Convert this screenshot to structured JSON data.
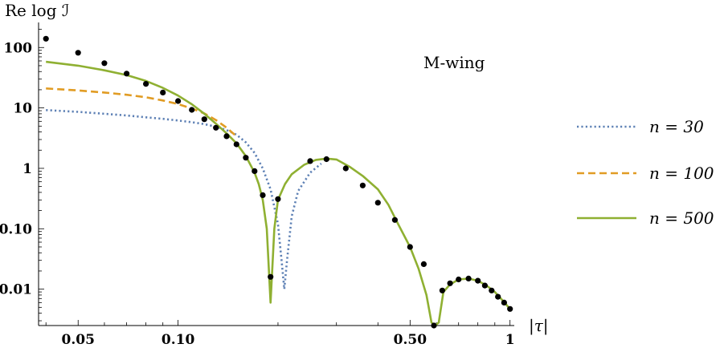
{
  "chart_data": {
    "type": "line",
    "title": "",
    "ylabel": "Re log ℐ",
    "xlabel": "|τ|",
    "x_scale": "log",
    "y_scale": "log",
    "xlim": [
      0.038,
      1.03
    ],
    "ylim": [
      0.0025,
      260
    ],
    "x_ticks": [
      {
        "value": 0.05,
        "label": "0.05"
      },
      {
        "value": 0.1,
        "label": "0.10"
      },
      {
        "value": 0.5,
        "label": "0.50"
      },
      {
        "value": 1,
        "label": "1"
      }
    ],
    "y_ticks": [
      {
        "value": 100,
        "label": "100"
      },
      {
        "value": 10,
        "label": "10"
      },
      {
        "value": 1,
        "label": "1"
      },
      {
        "value": 0.1,
        "label": "0.10"
      },
      {
        "value": 0.01,
        "label": "0.01"
      }
    ],
    "annotation": "M-wing",
    "legend_position": "right",
    "series": [
      {
        "name": "n = 30",
        "style": "dotted",
        "color": "#5e81b5",
        "points": [
          [
            0.04,
            9.2
          ],
          [
            0.05,
            8.6
          ],
          [
            0.06,
            8.0
          ],
          [
            0.07,
            7.5
          ],
          [
            0.08,
            7.0
          ],
          [
            0.09,
            6.6
          ],
          [
            0.1,
            6.2
          ],
          [
            0.11,
            5.8
          ],
          [
            0.12,
            5.4
          ],
          [
            0.13,
            4.9
          ],
          [
            0.14,
            4.3
          ],
          [
            0.15,
            3.6
          ],
          [
            0.16,
            2.7
          ],
          [
            0.17,
            1.8
          ],
          [
            0.18,
            1.0
          ],
          [
            0.19,
            0.45
          ],
          [
            0.2,
            0.12
          ],
          [
            0.205,
            0.03
          ],
          [
            0.209,
            0.01
          ],
          [
            0.213,
            0.03
          ],
          [
            0.22,
            0.16
          ],
          [
            0.23,
            0.42
          ],
          [
            0.25,
            0.85
          ],
          [
            0.27,
            1.2
          ]
        ]
      },
      {
        "name": "n = 100",
        "style": "dashed",
        "color": "#e19c24",
        "points": [
          [
            0.04,
            21
          ],
          [
            0.05,
            19.5
          ],
          [
            0.06,
            18
          ],
          [
            0.07,
            16.5
          ],
          [
            0.08,
            15
          ],
          [
            0.09,
            13.3
          ],
          [
            0.1,
            11.6
          ],
          [
            0.11,
            9.8
          ],
          [
            0.12,
            8.1
          ],
          [
            0.13,
            6.3
          ],
          [
            0.14,
            4.7
          ],
          [
            0.15,
            3.4
          ]
        ]
      },
      {
        "name": "n = 500",
        "style": "solid",
        "color": "#8fb032",
        "points": [
          [
            0.04,
            58
          ],
          [
            0.05,
            50
          ],
          [
            0.06,
            42
          ],
          [
            0.07,
            35
          ],
          [
            0.08,
            28
          ],
          [
            0.09,
            21.5
          ],
          [
            0.1,
            16
          ],
          [
            0.11,
            11.5
          ],
          [
            0.12,
            8.0
          ],
          [
            0.13,
            5.5
          ],
          [
            0.14,
            3.8
          ],
          [
            0.15,
            2.6
          ],
          [
            0.16,
            1.6
          ],
          [
            0.17,
            0.85
          ],
          [
            0.175,
            0.55
          ],
          [
            0.18,
            0.3
          ],
          [
            0.185,
            0.1
          ],
          [
            0.19,
            0.006
          ],
          [
            0.195,
            0.1
          ],
          [
            0.2,
            0.3
          ],
          [
            0.21,
            0.55
          ],
          [
            0.22,
            0.8
          ],
          [
            0.24,
            1.15
          ],
          [
            0.26,
            1.38
          ],
          [
            0.28,
            1.45
          ],
          [
            0.3,
            1.4
          ],
          [
            0.33,
            1.05
          ],
          [
            0.36,
            0.75
          ],
          [
            0.4,
            0.45
          ],
          [
            0.43,
            0.25
          ],
          [
            0.46,
            0.12
          ],
          [
            0.5,
            0.05
          ],
          [
            0.53,
            0.022
          ],
          [
            0.56,
            0.008
          ],
          [
            0.58,
            0.0028
          ],
          [
            0.595,
            0.0025
          ],
          [
            0.61,
            0.0028
          ],
          [
            0.63,
            0.009
          ],
          [
            0.66,
            0.012
          ],
          [
            0.7,
            0.0145
          ],
          [
            0.75,
            0.015
          ],
          [
            0.8,
            0.0138
          ],
          [
            0.85,
            0.0115
          ],
          [
            0.9,
            0.009
          ],
          [
            0.95,
            0.0065
          ],
          [
            1.0,
            0.0047
          ]
        ]
      }
    ],
    "data_points": [
      [
        0.04,
        140
      ],
      [
        0.05,
        82
      ],
      [
        0.06,
        55
      ],
      [
        0.07,
        37
      ],
      [
        0.08,
        25
      ],
      [
        0.09,
        18
      ],
      [
        0.1,
        13
      ],
      [
        0.11,
        9.3
      ],
      [
        0.12,
        6.5
      ],
      [
        0.13,
        4.7
      ],
      [
        0.14,
        3.4
      ],
      [
        0.15,
        2.5
      ],
      [
        0.16,
        1.5
      ],
      [
        0.17,
        0.9
      ],
      [
        0.18,
        0.36
      ],
      [
        0.19,
        0.016
      ],
      [
        0.2,
        0.31
      ],
      [
        0.25,
        1.32
      ],
      [
        0.28,
        1.42
      ],
      [
        0.32,
        1.0
      ],
      [
        0.36,
        0.52
      ],
      [
        0.4,
        0.27
      ],
      [
        0.45,
        0.14
      ],
      [
        0.5,
        0.05
      ],
      [
        0.55,
        0.026
      ],
      [
        0.59,
        0.0025
      ],
      [
        0.625,
        0.0095
      ],
      [
        0.66,
        0.0125
      ],
      [
        0.7,
        0.0145
      ],
      [
        0.75,
        0.015
      ],
      [
        0.8,
        0.0138
      ],
      [
        0.84,
        0.0115
      ],
      [
        0.88,
        0.0095
      ],
      [
        0.92,
        0.0075
      ],
      [
        0.96,
        0.006
      ],
      [
        1.0,
        0.0047
      ]
    ]
  }
}
